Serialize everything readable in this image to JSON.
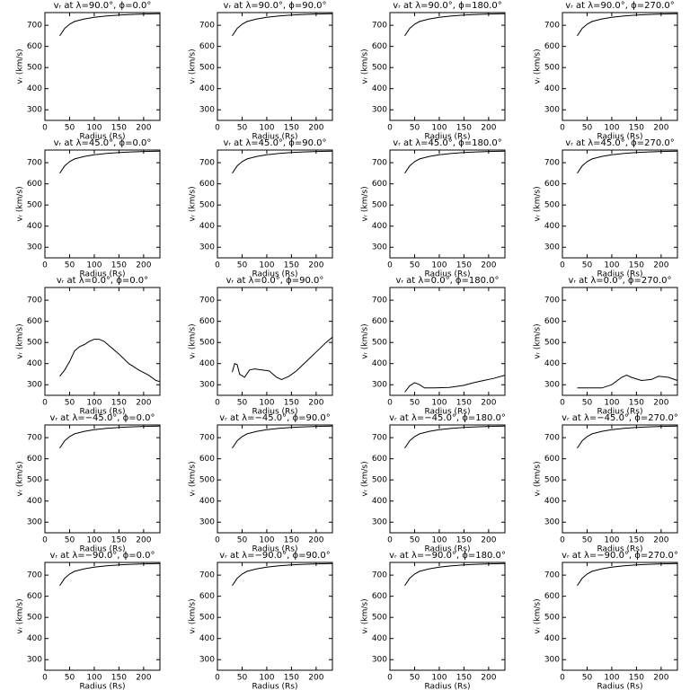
{
  "chart_data": [
    {
      "type": "line",
      "title": "vᵣ at λ=90.0°, ϕ=0.0°",
      "xlabel": "Radius (Rs)",
      "ylabel": "vᵣ (km/s)",
      "x": [
        30,
        40,
        50,
        60,
        80,
        100,
        125,
        150,
        175,
        200,
        233
      ],
      "values": [
        650,
        685,
        705,
        718,
        730,
        738,
        744,
        748,
        751,
        753,
        755
      ],
      "xlim": [
        0,
        233
      ],
      "ylim": [
        250,
        760
      ],
      "xticks": [
        0,
        50,
        100,
        150,
        200
      ],
      "yticks": [
        300,
        400,
        500,
        600,
        700
      ],
      "color": "#000000"
    },
    {
      "type": "line",
      "title": "vᵣ at λ=90.0°, ϕ=90.0°",
      "xlabel": "Radius (Rs)",
      "ylabel": "vᵣ (km/s)",
      "x": [
        30,
        40,
        50,
        60,
        80,
        100,
        125,
        150,
        175,
        200,
        233
      ],
      "values": [
        650,
        685,
        705,
        718,
        730,
        738,
        744,
        748,
        751,
        753,
        755
      ],
      "xlim": [
        0,
        233
      ],
      "ylim": [
        250,
        760
      ],
      "xticks": [
        0,
        50,
        100,
        150,
        200
      ],
      "yticks": [
        300,
        400,
        500,
        600,
        700
      ],
      "color": "#000000"
    },
    {
      "type": "line",
      "title": "vᵣ at λ=90.0°, ϕ=180.0°",
      "xlabel": "Radius (Rs)",
      "ylabel": "vᵣ (km/s)",
      "x": [
        30,
        40,
        50,
        60,
        80,
        100,
        125,
        150,
        175,
        200,
        233
      ],
      "values": [
        650,
        685,
        705,
        718,
        730,
        738,
        744,
        748,
        751,
        753,
        755
      ],
      "xlim": [
        0,
        233
      ],
      "ylim": [
        250,
        760
      ],
      "xticks": [
        0,
        50,
        100,
        150,
        200
      ],
      "yticks": [
        300,
        400,
        500,
        600,
        700
      ],
      "color": "#000000"
    },
    {
      "type": "line",
      "title": "vᵣ at λ=90.0°, ϕ=270.0°",
      "xlabel": "Radius (Rs)",
      "ylabel": "vᵣ (km/s)",
      "x": [
        30,
        40,
        50,
        60,
        80,
        100,
        125,
        150,
        175,
        200,
        233
      ],
      "values": [
        650,
        685,
        705,
        718,
        730,
        738,
        744,
        748,
        751,
        753,
        755
      ],
      "xlim": [
        0,
        233
      ],
      "ylim": [
        250,
        760
      ],
      "xticks": [
        0,
        50,
        100,
        150,
        200
      ],
      "yticks": [
        300,
        400,
        500,
        600,
        700
      ],
      "color": "#000000"
    },
    {
      "type": "line",
      "title": "vᵣ at λ=45.0°, ϕ=0.0°",
      "xlabel": "Radius (Rs)",
      "ylabel": "vᵣ (km/s)",
      "x": [
        30,
        40,
        50,
        60,
        80,
        100,
        125,
        150,
        175,
        200,
        233
      ],
      "values": [
        650,
        685,
        705,
        718,
        730,
        738,
        744,
        748,
        751,
        753,
        755
      ],
      "xlim": [
        0,
        233
      ],
      "ylim": [
        250,
        760
      ],
      "xticks": [
        0,
        50,
        100,
        150,
        200
      ],
      "yticks": [
        300,
        400,
        500,
        600,
        700
      ],
      "color": "#000000"
    },
    {
      "type": "line",
      "title": "vᵣ at λ=45.0°, ϕ=90.0°",
      "xlabel": "Radius (Rs)",
      "ylabel": "vᵣ (km/s)",
      "x": [
        30,
        40,
        50,
        60,
        80,
        100,
        125,
        150,
        175,
        200,
        233
      ],
      "values": [
        650,
        685,
        705,
        718,
        730,
        738,
        744,
        748,
        751,
        753,
        755
      ],
      "xlim": [
        0,
        233
      ],
      "ylim": [
        250,
        760
      ],
      "xticks": [
        0,
        50,
        100,
        150,
        200
      ],
      "yticks": [
        300,
        400,
        500,
        600,
        700
      ],
      "color": "#000000"
    },
    {
      "type": "line",
      "title": "vᵣ at λ=45.0°, ϕ=180.0°",
      "xlabel": "Radius (Rs)",
      "ylabel": "vᵣ (km/s)",
      "x": [
        30,
        40,
        50,
        60,
        80,
        100,
        125,
        150,
        175,
        200,
        233
      ],
      "values": [
        650,
        685,
        705,
        718,
        730,
        738,
        744,
        748,
        751,
        753,
        755
      ],
      "xlim": [
        0,
        233
      ],
      "ylim": [
        250,
        760
      ],
      "xticks": [
        0,
        50,
        100,
        150,
        200
      ],
      "yticks": [
        300,
        400,
        500,
        600,
        700
      ],
      "color": "#000000"
    },
    {
      "type": "line",
      "title": "vᵣ at λ=45.0°, ϕ=270.0°",
      "xlabel": "Radius (Rs)",
      "ylabel": "vᵣ (km/s)",
      "x": [
        30,
        40,
        50,
        60,
        80,
        100,
        125,
        150,
        175,
        200,
        233
      ],
      "values": [
        650,
        685,
        705,
        718,
        730,
        738,
        744,
        748,
        751,
        753,
        755
      ],
      "xlim": [
        0,
        233
      ],
      "ylim": [
        250,
        760
      ],
      "xticks": [
        0,
        50,
        100,
        150,
        200
      ],
      "yticks": [
        300,
        400,
        500,
        600,
        700
      ],
      "color": "#000000"
    },
    {
      "type": "line",
      "title": "vᵣ at λ=0.0°, ϕ=0.0°",
      "xlabel": "Radius (Rs)",
      "ylabel": "vᵣ (km/s)",
      "x": [
        30,
        40,
        50,
        60,
        70,
        80,
        90,
        100,
        110,
        120,
        130,
        150,
        170,
        190,
        210,
        225,
        233
      ],
      "values": [
        340,
        370,
        410,
        460,
        480,
        490,
        505,
        515,
        515,
        505,
        485,
        445,
        400,
        370,
        345,
        320,
        315
      ],
      "xlim": [
        0,
        233
      ],
      "ylim": [
        250,
        760
      ],
      "xticks": [
        0,
        50,
        100,
        150,
        200
      ],
      "yticks": [
        300,
        400,
        500,
        600,
        700
      ],
      "color": "#000000"
    },
    {
      "type": "line",
      "title": "vᵣ at λ=0.0°, ϕ=90.0°",
      "xlabel": "Radius (Rs)",
      "ylabel": "vᵣ (km/s)",
      "x": [
        30,
        35,
        40,
        45,
        55,
        65,
        75,
        90,
        105,
        120,
        130,
        145,
        160,
        180,
        200,
        220,
        233
      ],
      "values": [
        360,
        400,
        395,
        350,
        335,
        370,
        375,
        370,
        365,
        335,
        325,
        340,
        365,
        410,
        455,
        500,
        525
      ],
      "xlim": [
        0,
        233
      ],
      "ylim": [
        250,
        760
      ],
      "xticks": [
        0,
        50,
        100,
        150,
        200
      ],
      "yticks": [
        300,
        400,
        500,
        600,
        700
      ],
      "color": "#000000"
    },
    {
      "type": "line",
      "title": "vᵣ at λ=0.0°, ϕ=180.0°",
      "xlabel": "Radius (Rs)",
      "ylabel": "vᵣ (km/s)",
      "x": [
        30,
        40,
        50,
        60,
        70,
        90,
        120,
        150,
        170,
        190,
        210,
        233
      ],
      "values": [
        265,
        295,
        310,
        300,
        285,
        285,
        287,
        297,
        310,
        320,
        330,
        345
      ],
      "xlim": [
        0,
        233
      ],
      "ylim": [
        250,
        760
      ],
      "xticks": [
        0,
        50,
        100,
        150,
        200
      ],
      "yticks": [
        300,
        400,
        500,
        600,
        700
      ],
      "color": "#000000"
    },
    {
      "type": "line",
      "title": "vᵣ at λ=0.0°, ϕ=270.0°",
      "xlabel": "Radius (Rs)",
      "ylabel": "vᵣ (km/s)",
      "x": [
        30,
        60,
        80,
        100,
        120,
        130,
        140,
        160,
        180,
        195,
        215,
        233
      ],
      "values": [
        285,
        285,
        285,
        300,
        335,
        345,
        335,
        320,
        325,
        340,
        335,
        320
      ],
      "xlim": [
        0,
        233
      ],
      "ylim": [
        250,
        760
      ],
      "xticks": [
        0,
        50,
        100,
        150,
        200
      ],
      "yticks": [
        300,
        400,
        500,
        600,
        700
      ],
      "color": "#000000"
    },
    {
      "type": "line",
      "title": "vᵣ at λ=−45.0°, ϕ=0.0°",
      "xlabel": "Radius (Rs)",
      "ylabel": "vᵣ (km/s)",
      "x": [
        30,
        40,
        50,
        60,
        80,
        100,
        125,
        150,
        175,
        200,
        233
      ],
      "values": [
        650,
        685,
        705,
        718,
        730,
        738,
        744,
        748,
        751,
        753,
        755
      ],
      "xlim": [
        0,
        233
      ],
      "ylim": [
        250,
        760
      ],
      "xticks": [
        0,
        50,
        100,
        150,
        200
      ],
      "yticks": [
        300,
        400,
        500,
        600,
        700
      ],
      "color": "#000000"
    },
    {
      "type": "line",
      "title": "vᵣ at λ=−45.0°, ϕ=90.0°",
      "xlabel": "Radius (Rs)",
      "ylabel": "vᵣ (km/s)",
      "x": [
        30,
        40,
        50,
        60,
        80,
        100,
        125,
        150,
        175,
        200,
        233
      ],
      "values": [
        650,
        685,
        705,
        718,
        730,
        738,
        744,
        748,
        751,
        753,
        755
      ],
      "xlim": [
        0,
        233
      ],
      "ylim": [
        250,
        760
      ],
      "xticks": [
        0,
        50,
        100,
        150,
        200
      ],
      "yticks": [
        300,
        400,
        500,
        600,
        700
      ],
      "color": "#000000"
    },
    {
      "type": "line",
      "title": "vᵣ at λ=−45.0°, ϕ=180.0°",
      "xlabel": "Radius (Rs)",
      "ylabel": "vᵣ (km/s)",
      "x": [
        30,
        40,
        50,
        60,
        80,
        100,
        125,
        150,
        175,
        200,
        233
      ],
      "values": [
        650,
        685,
        705,
        718,
        730,
        738,
        744,
        748,
        751,
        753,
        755
      ],
      "xlim": [
        0,
        233
      ],
      "ylim": [
        250,
        760
      ],
      "xticks": [
        0,
        50,
        100,
        150,
        200
      ],
      "yticks": [
        300,
        400,
        500,
        600,
        700
      ],
      "color": "#000000"
    },
    {
      "type": "line",
      "title": "vᵣ at λ=−45.0°, ϕ=270.0°",
      "xlabel": "Radius (Rs)",
      "ylabel": "vᵣ (km/s)",
      "x": [
        30,
        40,
        50,
        60,
        80,
        100,
        125,
        150,
        175,
        200,
        233
      ],
      "values": [
        650,
        685,
        705,
        718,
        730,
        738,
        744,
        748,
        751,
        753,
        755
      ],
      "xlim": [
        0,
        233
      ],
      "ylim": [
        250,
        760
      ],
      "xticks": [
        0,
        50,
        100,
        150,
        200
      ],
      "yticks": [
        300,
        400,
        500,
        600,
        700
      ],
      "color": "#000000"
    },
    {
      "type": "line",
      "title": "vᵣ at λ=−90.0°, ϕ=0.0°",
      "xlabel": "Radius (Rs)",
      "ylabel": "vᵣ (km/s)",
      "x": [
        30,
        40,
        50,
        60,
        80,
        100,
        125,
        150,
        175,
        200,
        233
      ],
      "values": [
        650,
        685,
        705,
        718,
        730,
        738,
        744,
        748,
        751,
        753,
        755
      ],
      "xlim": [
        0,
        233
      ],
      "ylim": [
        250,
        760
      ],
      "xticks": [
        0,
        50,
        100,
        150,
        200
      ],
      "yticks": [
        300,
        400,
        500,
        600,
        700
      ],
      "color": "#000000"
    },
    {
      "type": "line",
      "title": "vᵣ at λ=−90.0°, ϕ=90.0°",
      "xlabel": "Radius (Rs)",
      "ylabel": "vᵣ (km/s)",
      "x": [
        30,
        40,
        50,
        60,
        80,
        100,
        125,
        150,
        175,
        200,
        233
      ],
      "values": [
        650,
        685,
        705,
        718,
        730,
        738,
        744,
        748,
        751,
        753,
        755
      ],
      "xlim": [
        0,
        233
      ],
      "ylim": [
        250,
        760
      ],
      "xticks": [
        0,
        50,
        100,
        150,
        200
      ],
      "yticks": [
        300,
        400,
        500,
        600,
        700
      ],
      "color": "#000000"
    },
    {
      "type": "line",
      "title": "vᵣ at λ=−90.0°, ϕ=180.0°",
      "xlabel": "Radius (Rs)",
      "ylabel": "vᵣ (km/s)",
      "x": [
        30,
        40,
        50,
        60,
        80,
        100,
        125,
        150,
        175,
        200,
        233
      ],
      "values": [
        650,
        685,
        705,
        718,
        730,
        738,
        744,
        748,
        751,
        753,
        755
      ],
      "xlim": [
        0,
        233
      ],
      "ylim": [
        250,
        760
      ],
      "xticks": [
        0,
        50,
        100,
        150,
        200
      ],
      "yticks": [
        300,
        400,
        500,
        600,
        700
      ],
      "color": "#000000"
    },
    {
      "type": "line",
      "title": "vᵣ at λ=−90.0°, ϕ=270.0°",
      "xlabel": "Radius (Rs)",
      "ylabel": "vᵣ (km/s)",
      "x": [
        30,
        40,
        50,
        60,
        80,
        100,
        125,
        150,
        175,
        200,
        233
      ],
      "values": [
        650,
        685,
        705,
        718,
        730,
        738,
        744,
        748,
        751,
        753,
        755
      ],
      "xlim": [
        0,
        233
      ],
      "ylim": [
        250,
        760
      ],
      "xticks": [
        0,
        50,
        100,
        150,
        200
      ],
      "yticks": [
        300,
        400,
        500,
        600,
        700
      ],
      "color": "#000000"
    }
  ]
}
